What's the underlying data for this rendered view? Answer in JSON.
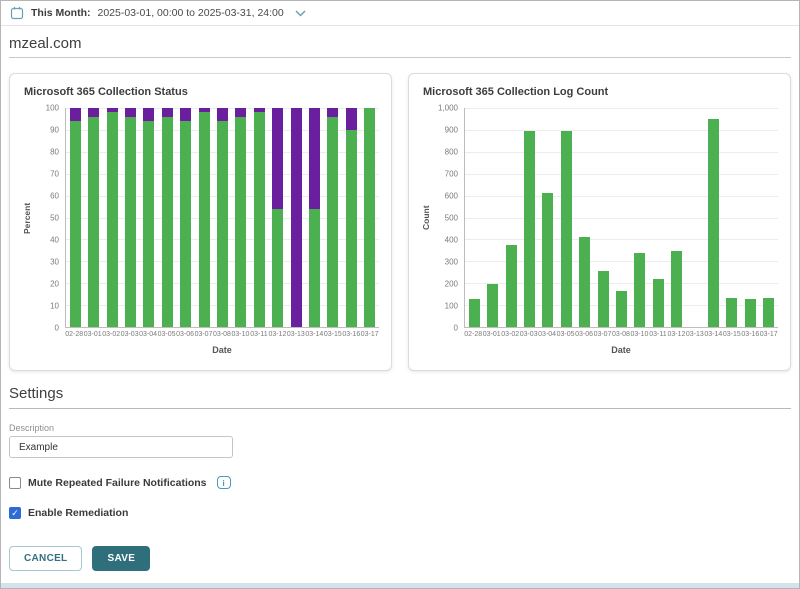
{
  "topbar": {
    "label": "This Month:",
    "range": "2025-03-01, 00:00 to 2025-03-31, 24:00"
  },
  "page": {
    "domain_title": "mzeal.com"
  },
  "chart_data": [
    {
      "type": "bar",
      "stacked": true,
      "title": "Microsoft 365 Collection Status",
      "categories": [
        "02-28",
        "03-01",
        "03-02",
        "03-03",
        "03-04",
        "03-05",
        "03-06",
        "03-07",
        "03-08",
        "03-10",
        "03-11",
        "03-12",
        "03-13",
        "03-14",
        "03-15",
        "03-16",
        "03-17"
      ],
      "series": [
        {
          "name": "success-percent",
          "color": "#4caf50",
          "values": [
            94,
            96,
            98,
            96,
            94,
            96,
            94,
            98,
            94,
            96,
            98,
            54,
            0,
            54,
            96,
            90,
            100
          ]
        },
        {
          "name": "failure-percent",
          "color": "#691f9e",
          "values": [
            6,
            4,
            2,
            4,
            6,
            4,
            6,
            2,
            6,
            4,
            2,
            46,
            100,
            46,
            4,
            10,
            0
          ]
        }
      ],
      "xlabel": "Date",
      "ylabel": "Percent",
      "ylim": [
        0,
        100
      ],
      "ytick_step": 10,
      "grid": true,
      "legend": "none"
    },
    {
      "type": "bar",
      "stacked": false,
      "title": "Microsoft 365 Collection Log Count",
      "categories": [
        "02-28",
        "03-01",
        "03-02",
        "03-03",
        "03-04",
        "03-05",
        "03-06",
        "03-07",
        "03-08",
        "03-10",
        "03-11",
        "03-12",
        "03-13",
        "03-14",
        "03-15",
        "03-16",
        "03-17"
      ],
      "series": [
        {
          "name": "log-count",
          "color": "#4caf50",
          "values": [
            130,
            195,
            375,
            895,
            610,
            893,
            410,
            258,
            165,
            340,
            218,
            345,
            0,
            950,
            132,
            130,
            133
          ]
        }
      ],
      "xlabel": "Date",
      "ylabel": "Count",
      "ylim": [
        0,
        1000
      ],
      "ytick_step": 100,
      "grid": true,
      "legend": "none"
    }
  ],
  "settings": {
    "heading": "Settings",
    "description_label": "Description",
    "description_value": "Example",
    "mute_label": "Mute Repeated Failure Notifications",
    "mute_checked": false,
    "remediation_label": "Enable Remediation",
    "remediation_checked": true,
    "check_glyph": "✓",
    "info_glyph": "i"
  },
  "actions": {
    "cancel_label": "CANCEL",
    "save_label": "SAVE"
  },
  "colors": {
    "bar_green": "#4caf50",
    "bar_purple": "#691f9e",
    "accent_teal": "#2f6f7c",
    "checkbox_blue": "#2e6bd6",
    "footer_strip": "#d4e2ec"
  }
}
